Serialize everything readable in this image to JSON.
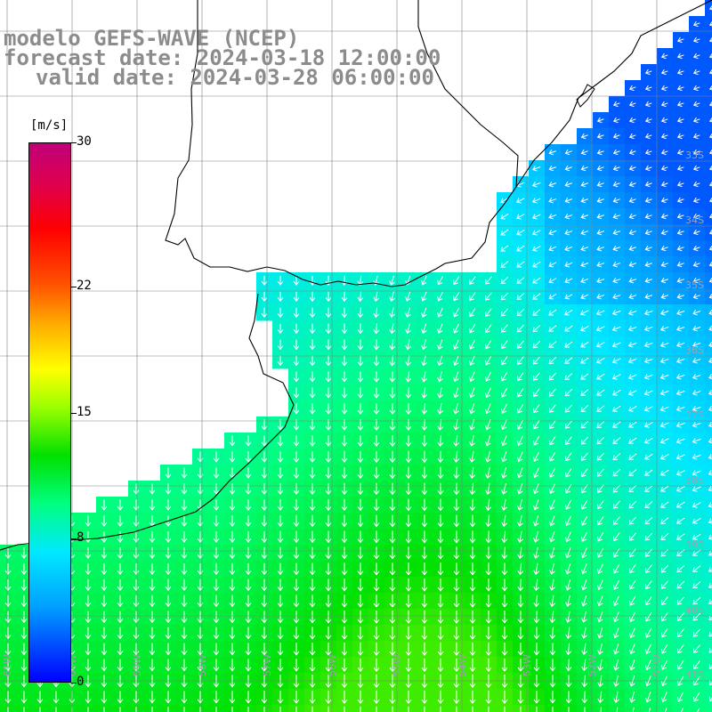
{
  "title": {
    "line1": "modelo GEFS-WAVE (NCEP)",
    "line2": "forecast date: 2024-03-18 12:00:00",
    "line3": "valid date: 2024-03-28 06:00:00"
  },
  "colorbar": {
    "unit": "[m/s]",
    "ticks": [
      "30",
      "22",
      "15",
      "8",
      "0"
    ],
    "tick_values": [
      30,
      22,
      15,
      8,
      0
    ],
    "range": [
      0,
      30
    ],
    "colors": [
      "#0000ff",
      "#00a0ff",
      "#00e8ff",
      "#00ff80",
      "#00e000",
      "#9cff00",
      "#ffff00",
      "#ffb000",
      "#ff5000",
      "#ff0000",
      "#e0004a",
      "#c0007a"
    ]
  },
  "lat_labels": [
    "33S",
    "34S",
    "35S",
    "36S",
    "37S",
    "38S",
    "39S",
    "40S",
    "41S"
  ],
  "lon_labels": [
    "61W",
    "60W",
    "59W",
    "58W",
    "57W",
    "56W",
    "55W",
    "54W",
    "53W",
    "52W",
    "51W"
  ],
  "colors": {
    "land": "#ffffff",
    "coast": "#000000",
    "grid": "#808080",
    "arrow": "#ffffff"
  }
}
